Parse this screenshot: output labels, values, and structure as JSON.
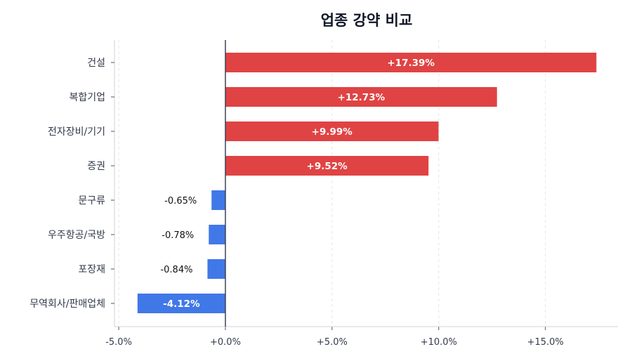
{
  "chart_data": {
    "type": "bar",
    "orientation": "horizontal",
    "title": "업종 강약 비교",
    "xlabel": "",
    "ylabel": "",
    "categories": [
      "건설",
      "복합기업",
      "전자장비/기기",
      "증권",
      "문구류",
      "우주항공/국방",
      "포장재",
      "무역회사/판매업체"
    ],
    "values": [
      17.39,
      12.73,
      9.99,
      9.52,
      -0.65,
      -0.78,
      -0.84,
      -4.12
    ],
    "labels": [
      "+17.39%",
      "+12.73%",
      "+9.99%",
      "+9.52%",
      "-0.65%",
      "-0.78%",
      "-0.84%",
      "-4.12%"
    ],
    "xlim": [
      -5.2,
      18.4
    ],
    "xticks": [
      -5,
      0,
      5,
      10,
      15
    ],
    "xtick_labels": [
      "-5.0%",
      "+0.0%",
      "+5.0%",
      "+10.0%",
      "+15.0%"
    ],
    "grid": "vertical dashed",
    "colors": {
      "positive": "#e04343",
      "negative": "#4178e8",
      "zero_line": "#3b4252"
    }
  }
}
